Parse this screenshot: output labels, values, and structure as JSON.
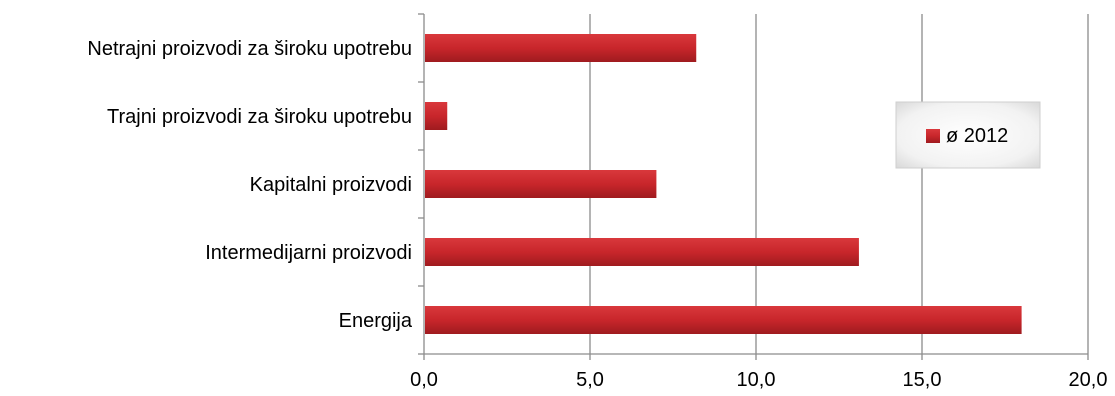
{
  "chart_data": {
    "type": "bar",
    "orientation": "horizontal",
    "categories": [
      "Netrajni proizvodi za široku upotrebu",
      "Trajni proizvodi za široku upotrebu",
      "Kapitalni proizvodi",
      "Intermedijarni proizvodi",
      "Energija"
    ],
    "series": [
      {
        "name": "ø 2012",
        "values": [
          8.2,
          0.7,
          7.0,
          13.1,
          18.0
        ]
      }
    ],
    "xlim": [
      0,
      20
    ],
    "xticks": [
      "0,0",
      "5,0",
      "10,0",
      "15,0",
      "20,0"
    ],
    "grid": true,
    "legend_position": "right",
    "colors": {
      "bar": "#c8262b",
      "bar_light": "#e0464a",
      "bar_dark": "#a41c20"
    }
  }
}
